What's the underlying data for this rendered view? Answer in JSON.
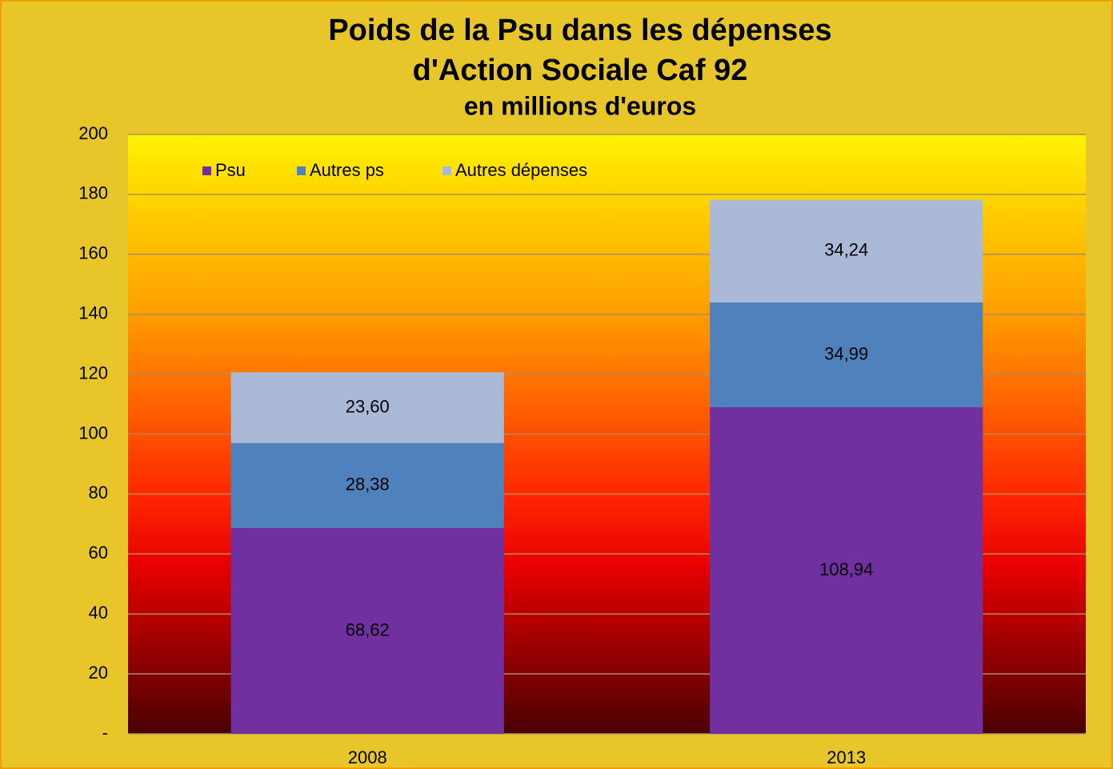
{
  "chart_data": {
    "type": "stacked_bar",
    "title": [
      "Poids de la Psu dans les dépenses",
      "d'Action Sociale Caf 92"
    ],
    "subtitle": "en millions d'euros",
    "categories": [
      "2008",
      "2013"
    ],
    "series": [
      {
        "name": "Psu",
        "color": "#7030a0",
        "values": [
          68.62,
          108.94
        ],
        "value_labels": [
          "68,62",
          "108,94"
        ]
      },
      {
        "name": "Autres ps",
        "color": "#4f81bd",
        "values": [
          28.38,
          34.99
        ],
        "value_labels": [
          "28,38",
          "34,99"
        ]
      },
      {
        "name": "Autres dépenses",
        "color": "#aab9d7",
        "values": [
          23.6,
          34.24
        ],
        "value_labels": [
          "23,60",
          "34,24"
        ]
      }
    ],
    "ylim": [
      0,
      200
    ],
    "yticks": [
      {
        "value": 0,
        "label": "-"
      },
      20,
      40,
      60,
      80,
      100,
      120,
      140,
      160,
      180,
      200
    ],
    "grid": true,
    "legend": "top-left"
  }
}
